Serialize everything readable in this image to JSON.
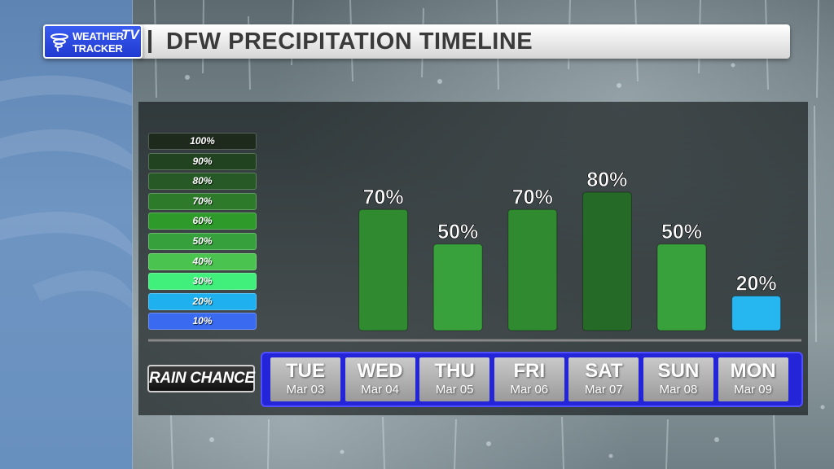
{
  "header": {
    "logo_line1": "WEATHER",
    "logo_line2": "TRACKER",
    "logo_tv": "TV",
    "title": "DFW PRECIPITATION TIMELINE"
  },
  "legend": {
    "items": [
      {
        "label": "100%",
        "color": "#1e2a1c"
      },
      {
        "label": "90%",
        "color": "#21431f"
      },
      {
        "label": "80%",
        "color": "#265925"
      },
      {
        "label": "70%",
        "color": "#2d7a2b"
      },
      {
        "label": "60%",
        "color": "#2e9a2a"
      },
      {
        "label": "50%",
        "color": "#36a03c"
      },
      {
        "label": "40%",
        "color": "#4bc44f"
      },
      {
        "label": "30%",
        "color": "#40f07a"
      },
      {
        "label": "20%",
        "color": "#1fb0f0"
      },
      {
        "label": "10%",
        "color": "#3a6af0"
      }
    ]
  },
  "rain_chance_label": "RAIN CHANCE",
  "chart_data": {
    "type": "bar",
    "categories": [
      "TUE",
      "WED",
      "THU",
      "FRI",
      "SAT",
      "SUN",
      "MON"
    ],
    "dates": [
      "Mar 03",
      "Mar 04",
      "Mar 05",
      "Mar 06",
      "Mar 07",
      "Mar 08",
      "Mar 09"
    ],
    "values": [
      null,
      70,
      50,
      70,
      80,
      50,
      20
    ],
    "value_labels": [
      "",
      "70%",
      "50%",
      "70%",
      "80%",
      "50%",
      "20%"
    ],
    "bar_colors": [
      "",
      "#2f8a30",
      "#38a13b",
      "#2f8a30",
      "#266a27",
      "#38a13b",
      "#26b6f0"
    ],
    "ylim": [
      0,
      100
    ],
    "title": "DFW PRECIPITATION TIMELINE"
  }
}
